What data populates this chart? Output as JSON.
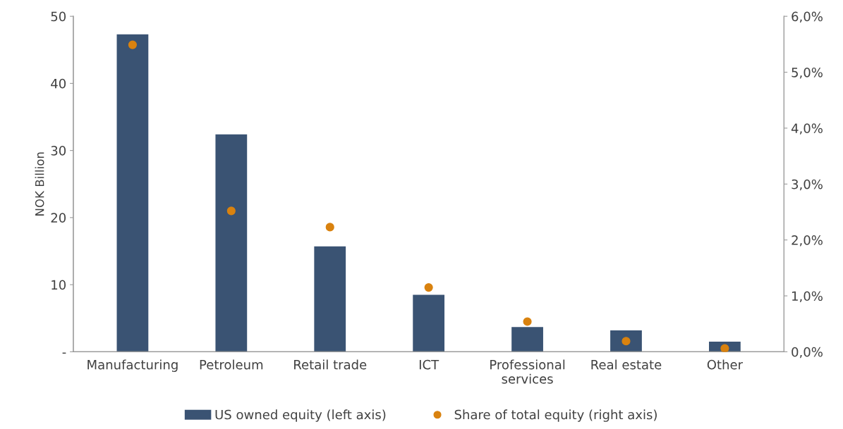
{
  "chart_data": {
    "type": "bar",
    "ylabel": "NOK Billion",
    "categories": [
      "Manufacturing",
      "Petroleum",
      "Retail trade",
      "ICT",
      "Professional\nservices",
      "Real estate",
      "Other"
    ],
    "series": [
      {
        "name": "US owned equity (left axis)",
        "color": "#3a5373",
        "values": [
          47.3,
          32.4,
          15.7,
          8.5,
          3.7,
          3.2,
          1.5
        ]
      },
      {
        "name": "Share of total equity (right axis)",
        "type": "scatter",
        "axis": "y2",
        "color": "#d9820f",
        "marker": "circle",
        "x": [
          "Manufacturing",
          "Petroleum",
          "Retail trade",
          "ICT",
          "Professional\nservices",
          "Real estate",
          "Other"
        ],
        "values": [
          5.49,
          2.52,
          2.23,
          1.15,
          0.54,
          0.19,
          0.06
        ]
      }
    ],
    "ylim": [
      0,
      50
    ],
    "yticks": [
      {
        "value": 0,
        "label": "-"
      },
      10,
      20,
      30,
      40,
      50
    ],
    "y2lim": [
      0,
      6
    ],
    "y2ticks": [
      {
        "value": 0,
        "label": "0,0%"
      },
      {
        "value": 1,
        "label": "1,0%"
      },
      {
        "value": 2,
        "label": "2,0%"
      },
      {
        "value": 3,
        "label": "3,0%"
      },
      {
        "value": 4,
        "label": "4,0%"
      },
      {
        "value": 5,
        "label": "5,0%"
      },
      {
        "value": 6,
        "label": "6,0%"
      }
    ],
    "grid": false,
    "legend": "bottom"
  }
}
